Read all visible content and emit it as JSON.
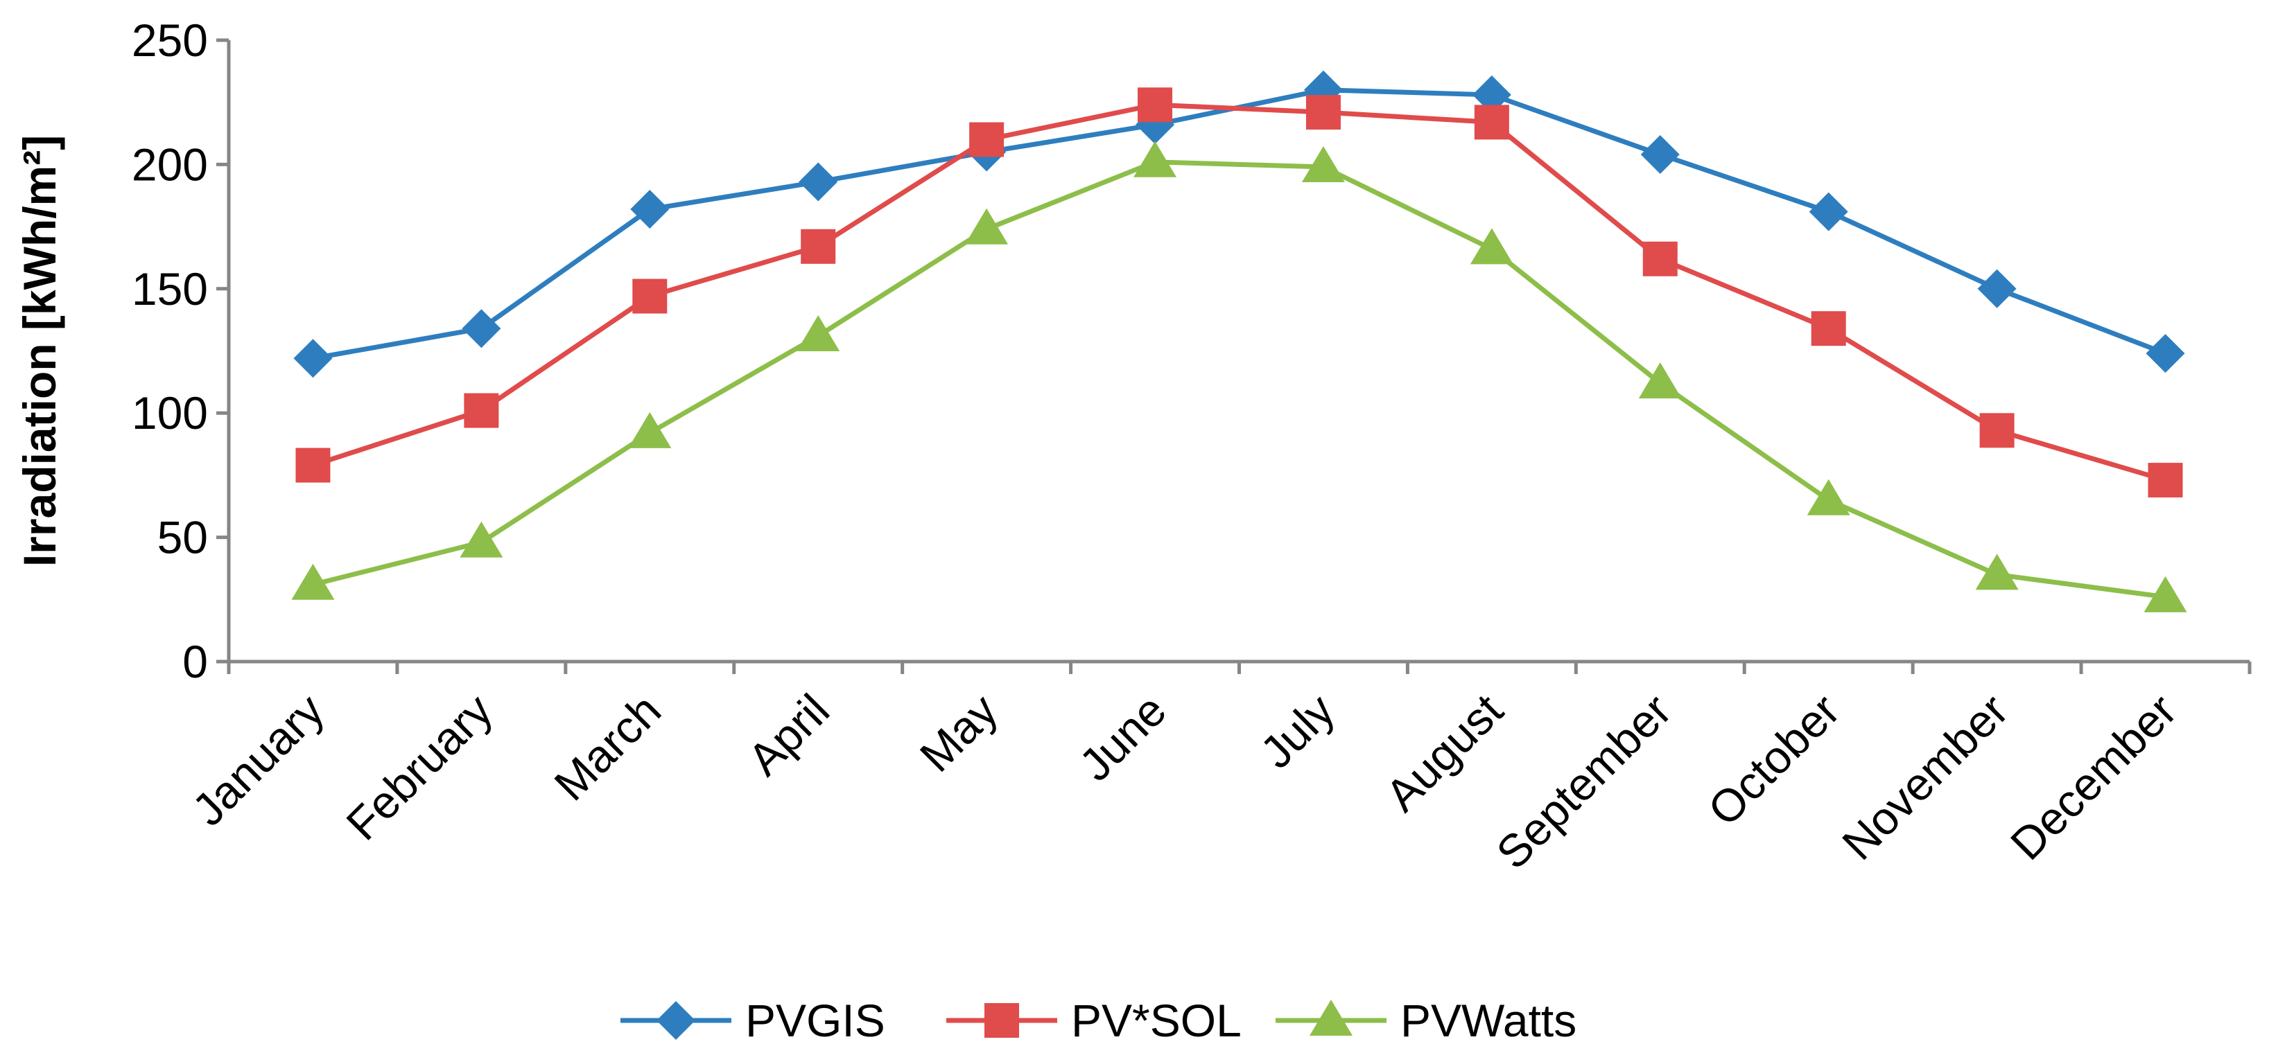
{
  "chart_data": {
    "type": "line",
    "title": "",
    "xlabel": "",
    "ylabel": "Irradiation [kWh/m²]",
    "ylim": [
      0,
      250
    ],
    "yticks": [
      0,
      50,
      100,
      150,
      200,
      250
    ],
    "grid": false,
    "legend_position": "bottom",
    "categories": [
      "January",
      "February",
      "March",
      "April",
      "May",
      "June",
      "July",
      "August",
      "September",
      "October",
      "November",
      "December"
    ],
    "series": [
      {
        "name": "PVGIS",
        "color": "#2E7EBF",
        "marker": "diamond",
        "values": [
          122,
          134,
          182,
          193,
          205,
          216,
          230,
          228,
          204,
          181,
          150,
          124
        ]
      },
      {
        "name": "PV*SOL",
        "color": "#E04B4B",
        "marker": "square",
        "values": [
          79,
          101,
          147,
          167,
          210,
          224,
          221,
          217,
          162,
          134,
          93,
          73
        ]
      },
      {
        "name": "PVWatts",
        "color": "#8DBE4A",
        "marker": "triangle",
        "values": [
          31,
          48,
          92,
          131,
          174,
          201,
          199,
          166,
          112,
          65,
          35,
          26
        ]
      }
    ]
  }
}
